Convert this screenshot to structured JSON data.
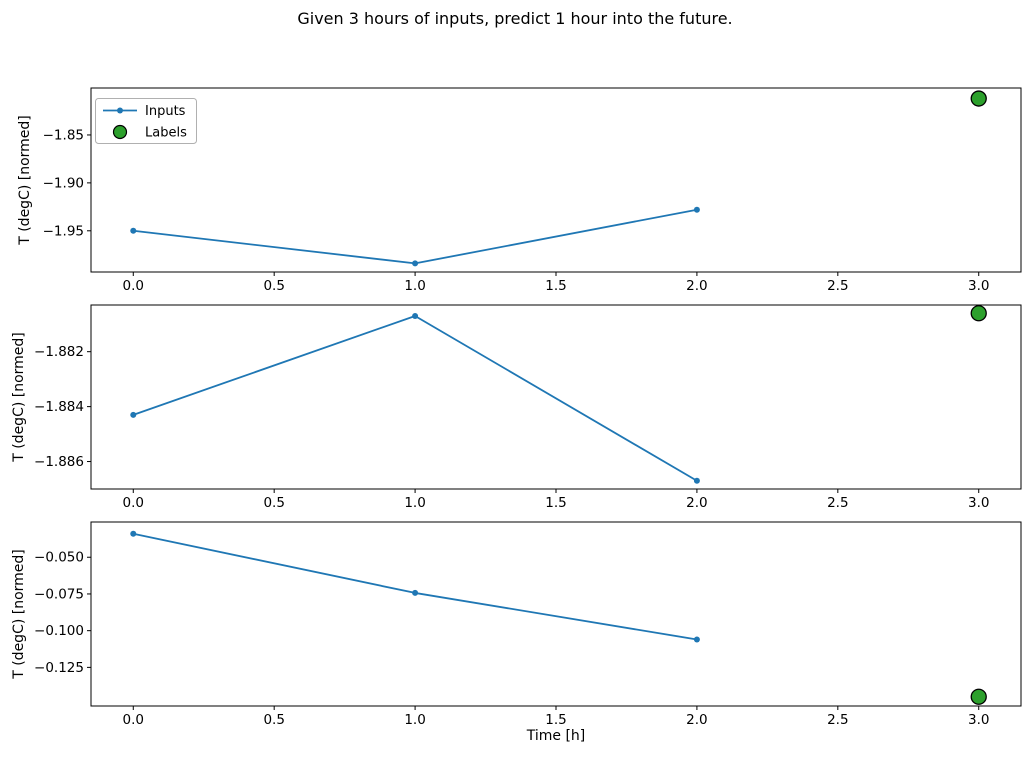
{
  "title": "Given 3 hours of inputs, predict 1 hour into the future.",
  "xlabel": "Time [h]",
  "colors": {
    "inputs_line": "#1f77b4",
    "labels_fill": "#2ca02c",
    "labels_edge": "#000000",
    "axis": "#000000",
    "legend_border": "#b0b0b0",
    "background": "#ffffff"
  },
  "legend": {
    "items": [
      {
        "label": "Inputs",
        "marker": "line-dot"
      },
      {
        "label": "Labels",
        "marker": "circle"
      }
    ],
    "position": "upper left"
  },
  "chart_data": [
    {
      "type": "line",
      "ylabel": "T (degC) [normed]",
      "x": [
        0,
        1,
        2
      ],
      "series": [
        {
          "name": "Inputs",
          "values": [
            -1.95,
            -1.984,
            -1.928
          ]
        }
      ],
      "label_point": {
        "name": "Labels",
        "x": 3,
        "y": -1.812
      },
      "xlim": [
        -0.15,
        3.15
      ],
      "ylim": [
        -1.993,
        -1.801
      ],
      "xtick_values": [
        0,
        0.5,
        1,
        1.5,
        2,
        2.5,
        3
      ],
      "xtick_labels": [
        "0.0",
        "0.5",
        "1.0",
        "1.5",
        "2.0",
        "2.5",
        "3.0"
      ],
      "ytick_values": [
        -1.85,
        -1.9,
        -1.95
      ],
      "ytick_labels": [
        "−1.85",
        "−1.90",
        "−1.95"
      ],
      "grid": false,
      "show_legend": true
    },
    {
      "type": "line",
      "ylabel": "T (degC) [normed]",
      "x": [
        0,
        1,
        2
      ],
      "series": [
        {
          "name": "Inputs",
          "values": [
            -1.8843,
            -1.8807,
            -1.8867
          ]
        }
      ],
      "label_point": {
        "name": "Labels",
        "x": 3,
        "y": -1.8806
      },
      "xlim": [
        -0.15,
        3.15
      ],
      "ylim": [
        -1.887,
        -1.8803
      ],
      "xtick_values": [
        0,
        0.5,
        1,
        1.5,
        2,
        2.5,
        3
      ],
      "xtick_labels": [
        "0.0",
        "0.5",
        "1.0",
        "1.5",
        "2.0",
        "2.5",
        "3.0"
      ],
      "ytick_values": [
        -1.882,
        -1.884,
        -1.886
      ],
      "ytick_labels": [
        "−1.882",
        "−1.884",
        "−1.886"
      ],
      "grid": false,
      "show_legend": false
    },
    {
      "type": "line",
      "ylabel": "T (degC) [normed]",
      "x": [
        0,
        1,
        2
      ],
      "series": [
        {
          "name": "Inputs",
          "values": [
            -0.034,
            -0.0743,
            -0.106
          ]
        }
      ],
      "label_point": {
        "name": "Labels",
        "x": 3,
        "y": -0.145
      },
      "xlim": [
        -0.15,
        3.15
      ],
      "ylim": [
        -0.1513,
        -0.026
      ],
      "xtick_values": [
        0,
        0.5,
        1,
        1.5,
        2,
        2.5,
        3
      ],
      "xtick_labels": [
        "0.0",
        "0.5",
        "1.0",
        "1.5",
        "2.0",
        "2.5",
        "3.0"
      ],
      "ytick_values": [
        -0.05,
        -0.075,
        -0.1,
        -0.125
      ],
      "ytick_labels": [
        "−0.050",
        "−0.075",
        "−0.100",
        "−0.125"
      ],
      "grid": false,
      "show_legend": false
    }
  ]
}
